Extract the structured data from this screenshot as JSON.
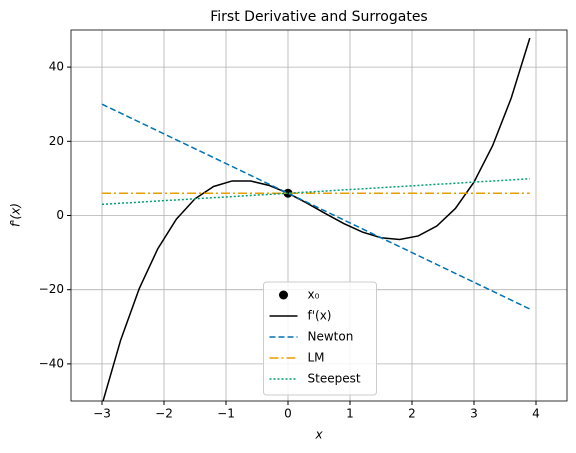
{
  "chart_data": {
    "type": "line",
    "title": "First Derivative and Surrogates",
    "xlabel": "x",
    "ylabel": "f'(x)",
    "xlim": [
      -3.5,
      4.5
    ],
    "ylim": [
      -50,
      50
    ],
    "xticks": [
      {
        "value": -3,
        "label": "−3"
      },
      {
        "value": -2,
        "label": "−2"
      },
      {
        "value": -1,
        "label": "−1"
      },
      0,
      1,
      2,
      3,
      4
    ],
    "yticks": [
      {
        "value": -40,
        "label": "−40"
      },
      {
        "value": -20,
        "label": "−20"
      },
      0,
      20,
      40
    ],
    "grid": true,
    "legend": "lower center",
    "series": [
      {
        "name": "x₀",
        "type": "scatter",
        "color": "#000000",
        "x": [
          0
        ],
        "values": [
          6
        ]
      },
      {
        "name": "f'(x)",
        "type": "line",
        "color": "#000000",
        "dash": "solid",
        "x": [
          -3,
          -2.7,
          -2.4,
          -2.1,
          -1.8,
          -1.5,
          -1.2,
          -0.9,
          -0.6,
          -0.3,
          0,
          0.3,
          0.6,
          0.9,
          1.2,
          1.5,
          1.8,
          2.1,
          2.4,
          2.7,
          3.0,
          3.3,
          3.6,
          3.9
        ],
        "values": [
          -51,
          -33.64,
          -19.73,
          -8.95,
          -0.98,
          4.5,
          7.82,
          9.31,
          9.29,
          8.08,
          6,
          3.38,
          0.55,
          -2.17,
          -4.46,
          -6,
          -6.46,
          -5.51,
          -2.83,
          1.9,
          9,
          18.8,
          31.63,
          47.81
        ]
      },
      {
        "name": "Newton",
        "type": "line",
        "color": "#0072b2",
        "dash": "dashed",
        "x": [
          -3,
          3.9
        ],
        "values": [
          30,
          -25.2
        ]
      },
      {
        "name": "LM",
        "type": "line",
        "color": "#e69f00",
        "dash": "dashdot",
        "x": [
          -3,
          3.9
        ],
        "values": [
          6,
          6
        ]
      },
      {
        "name": "Steepest",
        "type": "line",
        "color": "#009e73",
        "dash": "dotted",
        "x": [
          -3,
          3.9
        ],
        "values": [
          3,
          9.9
        ]
      }
    ]
  }
}
